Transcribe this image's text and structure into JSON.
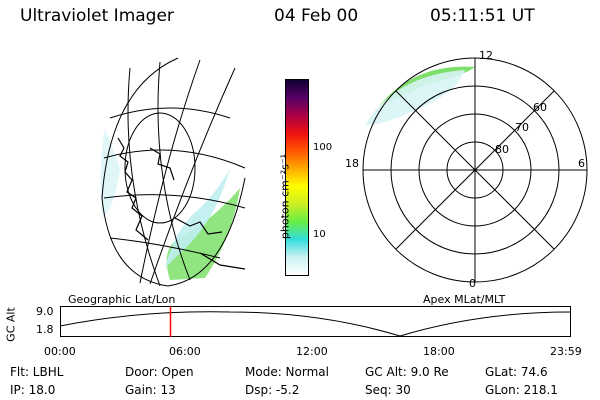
{
  "header": {
    "instrument": "Ultraviolet Imager",
    "date": "04 Feb 00",
    "time": "05:11:51 UT"
  },
  "left_panel": {
    "caption": "Geographic Lat/Lon"
  },
  "right_panel": {
    "caption": "Apex MLat/MLT",
    "mlt_labels": {
      "top": "12",
      "bottom": "0",
      "left": "18",
      "right": "6"
    },
    "lat_labels": [
      "60",
      "70",
      "80"
    ]
  },
  "colorbar": {
    "unit_label": "photon cm⁻²s⁻¹",
    "ticks": [
      "100",
      "10"
    ],
    "colors": [
      "#ffffff",
      "#ccf2f2",
      "#33dddd",
      "#66ee44",
      "#ccee22",
      "#ffff00",
      "#ffaa00",
      "#ff5500",
      "#ee1111",
      "#aa0044",
      "#550066",
      "#110033"
    ]
  },
  "timeline": {
    "ylabel": "GC Alt",
    "ytick_top": "9.0",
    "ytick_bottom": "1.8",
    "xticks": [
      "00:00",
      "06:00",
      "12:00",
      "18:00",
      "23:59"
    ],
    "marker_hour": 5.2
  },
  "info": {
    "filter": "Flt: LBHL",
    "ip": "IP: 18.0",
    "door": "Door: Open",
    "gain": "Gain: 13",
    "mode": "Mode: Normal",
    "dsp": "Dsp:    -5.2",
    "gc_alt": "GC Alt: 9.0 Re",
    "seq": "Seq: 30",
    "glat": "GLat:  74.6",
    "glon": "GLon: 218.1"
  }
}
